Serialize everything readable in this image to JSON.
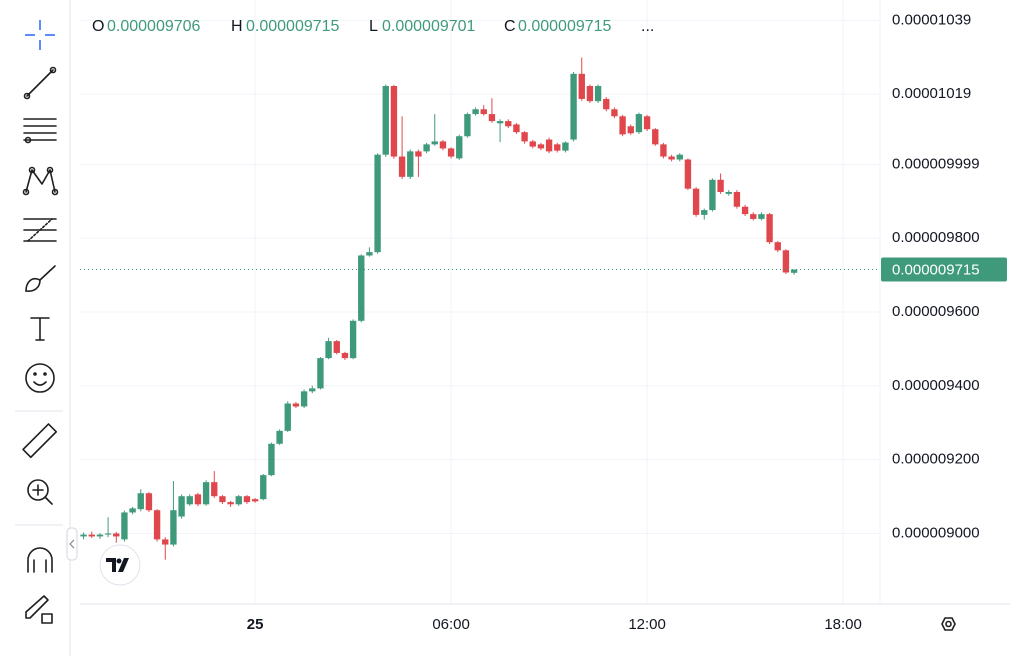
{
  "chart_data": {
    "type": "candlestick",
    "ohlc_legend": [
      {
        "label": "O",
        "value": 9.706e-06
      },
      {
        "label": "H",
        "value": 9.715e-06
      },
      {
        "label": "L",
        "value": 9.701e-06
      },
      {
        "label": "C",
        "value": 9.715e-06
      }
    ],
    "legend_more": "...",
    "x": [
      -5.25,
      -5,
      -4.75,
      -4.5,
      -4.25,
      -4,
      -3.75,
      -3.5,
      -3.25,
      -3,
      -2.75,
      -2.5,
      -2.25,
      -2,
      -1.75,
      -1.5,
      -1.25,
      -1,
      -0.75,
      -0.5,
      -0.25,
      0,
      0.25,
      0.5,
      0.75,
      1,
      1.25,
      1.5,
      1.75,
      2,
      2.25,
      2.5,
      2.75,
      3,
      3.25,
      3.5,
      3.75,
      4,
      4.25,
      4.5,
      4.75,
      5,
      5.25,
      5.5,
      5.75,
      6,
      6.25,
      6.5,
      6.75,
      7,
      7.25,
      7.5,
      7.75,
      8,
      8.25,
      8.5,
      8.75,
      9,
      9.25,
      9.5,
      9.75,
      10,
      10.25,
      10.5,
      10.75,
      11,
      11.25,
      11.5,
      11.75,
      12,
      12.25,
      12.5,
      12.75,
      13,
      13.25,
      13.5,
      13.75,
      14,
      14.25,
      14.5,
      14.75,
      15,
      15.25,
      15.5,
      15.75,
      16,
      16.25,
      16.5
    ],
    "open": [
      8.992e-06,
      8.997e-06,
      8.992e-06,
      8.997e-06,
      9e-06,
      8.984e-06,
      9.057e-06,
      9.066e-06,
      9.109e-06,
      9.063e-06,
      8.984e-06,
      8.97e-06,
      9.046e-06,
      9.079e-06,
      9.106e-06,
      9.079e-06,
      9.139e-06,
      9.101e-06,
      9.085e-06,
      9.079e-06,
      9.101e-06,
      9.093e-06,
      9.093e-06,
      9.158e-06,
      9.243e-06,
      9.278e-06,
      9.352e-06,
      9.344e-06,
      9.385e-06,
      9.393e-06,
      9.475e-06,
      9.521e-06,
      9.489e-06,
      9.475e-06,
      9.576e-06,
      9.753e-06,
      9.762e-06,
      1.0026e-05,
      1.0212e-05,
      1.0021e-05,
      9.966e-06,
      1.0035e-05,
      1.0035e-05,
      1.0054e-05,
      1.0062e-05,
      1.0043e-05,
      1.0016e-05,
      1.0076e-05,
      1.0136e-05,
      1.0149e-05,
      1.0136e-05,
      1.0111e-05,
      1.0117e-05,
      1.0108e-05,
      1.0087e-05,
      1.0062e-05,
      1.0054e-05,
      1.0067e-05,
      1.0054e-05,
      1.0037e-05,
      1.0067e-05,
      1.0245e-05,
      1.0212e-05,
      1.0171e-05,
      1.0177e-05,
      1.0149e-05,
      1.013e-05,
      1.0103e-05,
      1.0087e-05,
      1.013e-05,
      1.0095e-05,
      1.0054e-05,
      1.0021e-05,
      1.0013e-05,
      1.0013e-05,
      9.934e-06,
      9.863e-06,
      9.876e-06,
      9.958e-06,
      9.92e-06,
      9.925e-06,
      9.885e-06,
      9.865e-06,
      9.852e-06,
      9.865e-06,
      9.789e-06,
      9.767e-06,
      9.706e-06
    ],
    "high": [
      9.003e-06,
      9.005e-06,
      9.001e-06,
      9.044e-06,
      9.004e-06,
      9.062e-06,
      9.072e-06,
      9.12e-06,
      9.112e-06,
      9.066e-06,
      8.99e-06,
      9.142e-06,
      9.106e-06,
      9.106e-06,
      9.11e-06,
      9.144e-06,
      9.169e-06,
      9.104e-06,
      9.088e-06,
      9.104e-06,
      9.104e-06,
      9.096e-06,
      9.161e-06,
      9.246e-06,
      9.282e-06,
      9.358e-06,
      9.356e-06,
      9.39e-06,
      9.4e-06,
      9.478e-06,
      9.53e-06,
      9.524e-06,
      9.492e-06,
      9.58e-06,
      9.756e-06,
      9.775e-06,
      1.003e-05,
      1.0216e-05,
      1.0215e-05,
      1.013e-05,
      1.004e-05,
      1.004e-05,
      1.0058e-05,
      1.0136e-05,
      1.0066e-05,
      1.0046e-05,
      1.008e-05,
      1.014e-05,
      1.0154e-05,
      1.016e-05,
      1.0179e-05,
      1.0122e-05,
      1.0122e-05,
      1.0112e-05,
      1.009e-05,
      1.0066e-05,
      1.0058e-05,
      1.0072e-05,
      1.0058e-05,
      1.0062e-05,
      1.025e-05,
      1.0289e-05,
      1.0216e-05,
      1.0216e-05,
      1.0182e-05,
      1.0154e-05,
      1.0134e-05,
      1.0108e-05,
      1.014e-05,
      1.0134e-05,
      1.0098e-05,
      1.0058e-05,
      1.0026e-05,
      1.003e-05,
      1.0016e-05,
      9.938e-06,
      9.88e-06,
      9.962e-06,
      9.975e-06,
      9.93e-06,
      9.93e-06,
      9.89e-06,
      9.87e-06,
      9.87e-06,
      9.868e-06,
      9.792e-06,
      9.77e-06,
      9.715e-06
    ],
    "low": [
      8.984e-06,
      8.988e-06,
      8.985e-06,
      8.99e-06,
      8.975e-06,
      8.978e-06,
      9.052e-06,
      9.06e-06,
      9.058e-06,
      8.978e-06,
      8.929e-06,
      8.965e-06,
      9.04e-06,
      9.075e-06,
      9.074e-06,
      9.075e-06,
      9.096e-06,
      9.08e-06,
      9.072e-06,
      9.075e-06,
      9.08e-06,
      9.083e-06,
      9.09e-06,
      9.155e-06,
      9.24e-06,
      9.275e-06,
      9.34e-06,
      9.34e-06,
      9.38e-06,
      9.39e-06,
      9.472e-06,
      9.485e-06,
      9.47e-06,
      9.472e-06,
      9.572e-06,
      9.75e-06,
      9.758e-06,
      1.002e-05,
      1.0015e-05,
      9.96e-06,
      9.96e-06,
      9.966e-06,
      1.003e-05,
      1.005e-05,
      1.0038e-05,
      1.0016e-05,
      1.0012e-05,
      1.0072e-05,
      1.0132e-05,
      1.0132e-05,
      1.0112e-05,
      1.006e-05,
      1.0098e-05,
      1.0082e-05,
      1.0056e-05,
      1.0043e-05,
      1.0038e-05,
      1.003e-05,
      1.0032e-05,
      1.0032e-05,
      1.0062e-05,
      1.0172e-05,
      1.0166e-05,
      1.0166e-05,
      1.0144e-05,
      1.0125e-05,
      1.0076e-05,
      1.008e-05,
      1.0082e-05,
      1.009e-05,
      1.005e-05,
      1.0016e-05,
      1.0008e-05,
      1.0008e-05,
      9.93e-06,
      9.858e-06,
      9.85e-06,
      9.872e-06,
      9.92e-06,
      9.915e-06,
      9.88e-06,
      9.86e-06,
      9.848e-06,
      9.848e-06,
      9.784e-06,
      9.762e-06,
      9.703e-06,
      9.701e-06
    ],
    "close": [
      8.997e-06,
      8.992e-06,
      8.997e-06,
      9e-06,
      8.992e-06,
      9.057e-06,
      9.068e-06,
      9.109e-06,
      9.063e-06,
      8.984e-06,
      8.97e-06,
      9.063e-06,
      9.101e-06,
      9.101e-06,
      9.079e-06,
      9.139e-06,
      9.101e-06,
      9.085e-06,
      9.079e-06,
      9.101e-06,
      9.085e-06,
      9.087e-06,
      9.158e-06,
      9.243e-06,
      9.278e-06,
      9.352e-06,
      9.344e-06,
      9.385e-06,
      9.393e-06,
      9.475e-06,
      9.521e-06,
      9.489e-06,
      9.475e-06,
      9.576e-06,
      9.753e-06,
      9.762e-06,
      1.0026e-05,
      1.0212e-05,
      1.0021e-05,
      9.966e-06,
      1.0035e-05,
      1.0021e-05,
      1.0054e-05,
      1.0062e-05,
      1.0043e-05,
      1.0021e-05,
      1.0076e-05,
      1.0136e-05,
      1.0149e-05,
      1.0136e-05,
      1.0117e-05,
      1.0117e-05,
      1.0103e-05,
      1.0087e-05,
      1.0062e-05,
      1.0048e-05,
      1.0043e-05,
      1.0035e-05,
      1.0037e-05,
      1.0059e-05,
      1.0245e-05,
      1.0177e-05,
      1.0171e-05,
      1.0212e-05,
      1.0149e-05,
      1.013e-05,
      1.0081e-05,
      1.0084e-05,
      1.0136e-05,
      1.0095e-05,
      1.0054e-05,
      1.0021e-05,
      1.0013e-05,
      1.0026e-05,
      9.934e-06,
      9.863e-06,
      9.876e-06,
      9.958e-06,
      9.925e-06,
      9.925e-06,
      9.885e-06,
      9.865e-06,
      9.852e-06,
      9.865e-06,
      9.789e-06,
      9.767e-06,
      9.707e-06,
      9.715e-06
    ],
    "up_color": "#3f9a7c",
    "down_color": "#e0474c",
    "last_price": 9.715e-06,
    "xlim": [
      -5.36,
      19.13
    ],
    "xticks": [
      {
        "value": 0,
        "label": "25"
      },
      {
        "value": 6,
        "label": "06:00"
      },
      {
        "value": 12,
        "label": "12:00"
      },
      {
        "value": 18,
        "label": "18:00"
      }
    ],
    "ylim": [
      8.809e-06,
      1.0445e-05
    ],
    "yticks": [
      1.039e-05,
      1.019e-05,
      9.999e-06,
      {
        "value": 9.8e-06,
        "label": "0.000009800"
      },
      {
        "value": 9.6e-06,
        "label": "0.000009600"
      },
      {
        "value": 9.4e-06,
        "label": "0.000009400"
      },
      {
        "value": 9.2e-06,
        "label": "0.000009200"
      },
      {
        "value": 9e-06,
        "label": "0.000009000"
      }
    ],
    "grid": true
  }
}
